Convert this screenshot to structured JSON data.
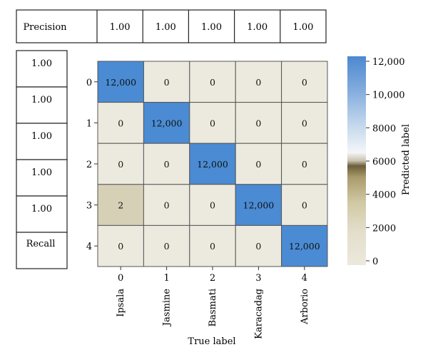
{
  "chart_data": {
    "type": "heatmap",
    "title": "",
    "xlabel": "True label",
    "ylabel": "Predicted label",
    "x_categories": [
      "Ipsala",
      "Jasmine",
      "Basmati",
      "Karacadag",
      "Arborio"
    ],
    "x_tick_indices": [
      "0",
      "1",
      "2",
      "3",
      "4"
    ],
    "y_tick_indices": [
      "0",
      "1",
      "2",
      "3",
      "4"
    ],
    "matrix": [
      [
        12000,
        0,
        0,
        0,
        0
      ],
      [
        0,
        12000,
        0,
        0,
        0
      ],
      [
        0,
        0,
        12000,
        0,
        0
      ],
      [
        2,
        0,
        0,
        12000,
        0
      ],
      [
        0,
        0,
        0,
        0,
        12000
      ]
    ],
    "cell_labels": [
      [
        "12,000",
        "0",
        "0",
        "0",
        "0"
      ],
      [
        "0",
        "12,000",
        "0",
        "0",
        "0"
      ],
      [
        "0",
        "0",
        "12,000",
        "0",
        "0"
      ],
      [
        "2",
        "0",
        "0",
        "12,000",
        "0"
      ],
      [
        "0",
        "0",
        "0",
        "0",
        "12,000"
      ]
    ],
    "precision": {
      "label": "Precision",
      "values": [
        "1.00",
        "1.00",
        "1.00",
        "1.00",
        "1.00"
      ]
    },
    "recall": {
      "label": "Recall",
      "values": [
        "1.00",
        "1.00",
        "1.00",
        "1.00",
        "1.00"
      ]
    },
    "colorbar": {
      "label": "Predicted label",
      "range": [
        0,
        12000
      ],
      "ticks": [
        0,
        2000,
        4000,
        6000,
        8000,
        10000,
        12000
      ],
      "tick_labels": [
        "0",
        "2000",
        "4000",
        "6000",
        "8000",
        "10,000",
        "12,000"
      ]
    },
    "colors": {
      "low": "#eceadf",
      "low_2": "#d6d0b6",
      "mid": "#756a45",
      "mid_light": "#e8eef5",
      "high": "#4a8bd3",
      "grid": "#555555"
    }
  }
}
